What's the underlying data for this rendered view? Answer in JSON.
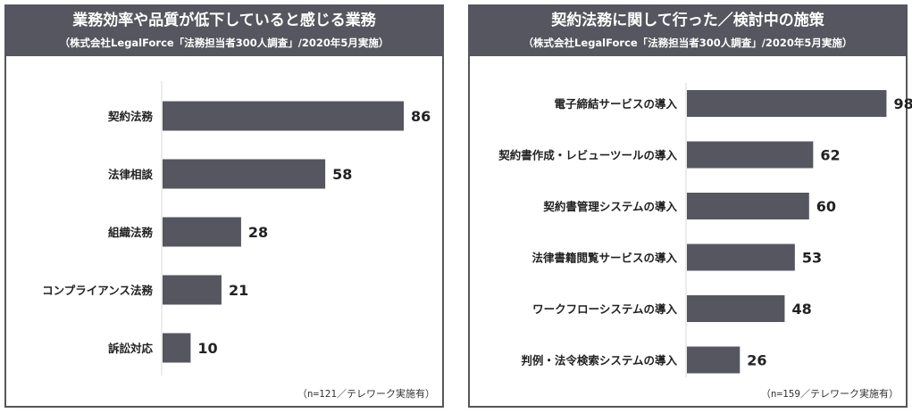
{
  "chart_data": [
    {
      "type": "bar",
      "orientation": "horizontal",
      "title": "業務効率や品質が低下していると感じる業務",
      "subtitle": "（株式会社LegalForce「法務担当者300人調査」/2020年5月実施）",
      "categories": [
        "契約法務",
        "法律相談",
        "組織法務",
        "コンプライアンス法務",
        "訴訟対応"
      ],
      "values": [
        86,
        58,
        28,
        21,
        10
      ],
      "xlim": [
        0,
        100
      ],
      "note": "（n=121／テレワーク実施有）",
      "bar_color": "#55565f",
      "grid": false
    },
    {
      "type": "bar",
      "orientation": "horizontal",
      "title": "契約法務に関して行った／検討中の施策",
      "subtitle": "（株式会社LegalForce「法務担当者300人調査」/2020年5月実施）",
      "categories": [
        "電子締結サービスの導入",
        "契約書作成・レビューツールの導入",
        "契約書管理システムの導入",
        "法律書籍閲覧サービスの導入",
        "ワークフローシステムの導入",
        "判例・法令検索システムの導入"
      ],
      "values": [
        98,
        62,
        60,
        53,
        48,
        26
      ],
      "xlim": [
        0,
        100
      ],
      "note": "（n=159／テレワーク実施有）",
      "bar_color": "#55565f",
      "grid": false
    }
  ]
}
